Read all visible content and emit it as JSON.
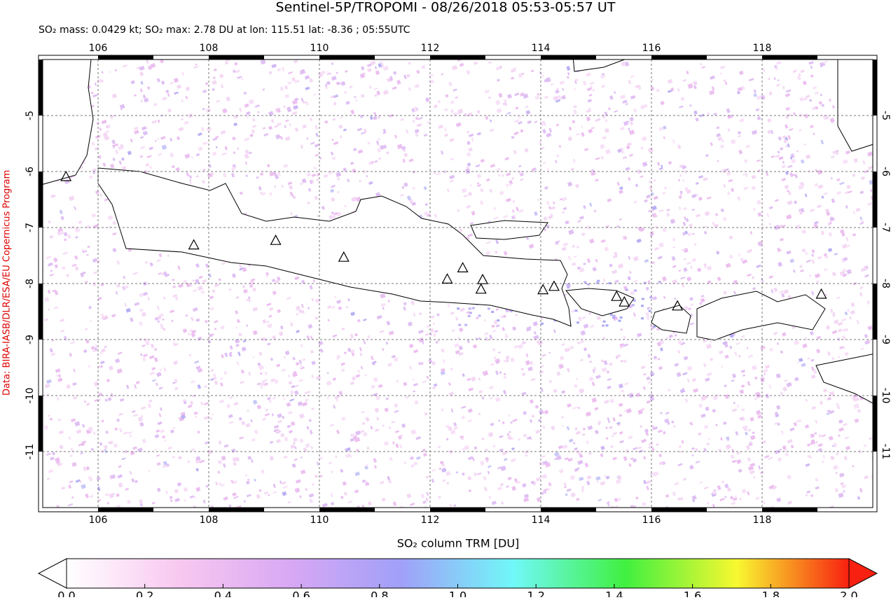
{
  "chart_data": {
    "type": "map",
    "title": "Sentinel-5P/TROPOMI - 08/26/2018 05:53-05:57 UT",
    "subtitle": "SO₂ mass: 0.0429 kt; SO₂ max: 2.78 DU at lon: 115.51 lat: -8.36 ; 05:55UTC",
    "side_note": "Data: BIRA-IASB/DLR/ESA/EU Copernicus Program",
    "xlim": [
      105,
      120
    ],
    "ylim": [
      -12,
      -4
    ],
    "xticks": [
      106,
      108,
      110,
      112,
      114,
      116,
      118
    ],
    "yticks": [
      -5,
      -6,
      -7,
      -8,
      -9,
      -10,
      -11
    ],
    "grid": true,
    "volcanoes": {
      "lon": [
        105.42,
        107.73,
        109.21,
        110.44,
        112.31,
        112.59,
        112.95,
        112.92,
        114.04,
        114.24,
        115.37,
        115.51,
        116.47,
        119.07
      ],
      "lat": [
        -6.1,
        -7.32,
        -7.24,
        -7.54,
        -7.93,
        -7.73,
        -7.94,
        -8.11,
        -8.12,
        -8.06,
        -8.24,
        -8.34,
        -8.41,
        -8.2
      ]
    },
    "colorbar": {
      "label": "SO₂ column TRM [DU]",
      "lim": [
        0,
        2
      ],
      "ticks": [
        {
          "value": 0,
          "label": "0.0"
        },
        0.2,
        0.4,
        0.6,
        0.8,
        {
          "value": 1,
          "label": "1.0"
        },
        1.2,
        1.4,
        1.6,
        1.8,
        {
          "value": 2,
          "label": "2.0"
        }
      ],
      "colors": [
        "#ffffff",
        "#f8c8f0",
        "#d8a8f4",
        "#a0a0f8",
        "#70f8f8",
        "#40f040",
        "#f8f830",
        "#f82010"
      ]
    }
  }
}
